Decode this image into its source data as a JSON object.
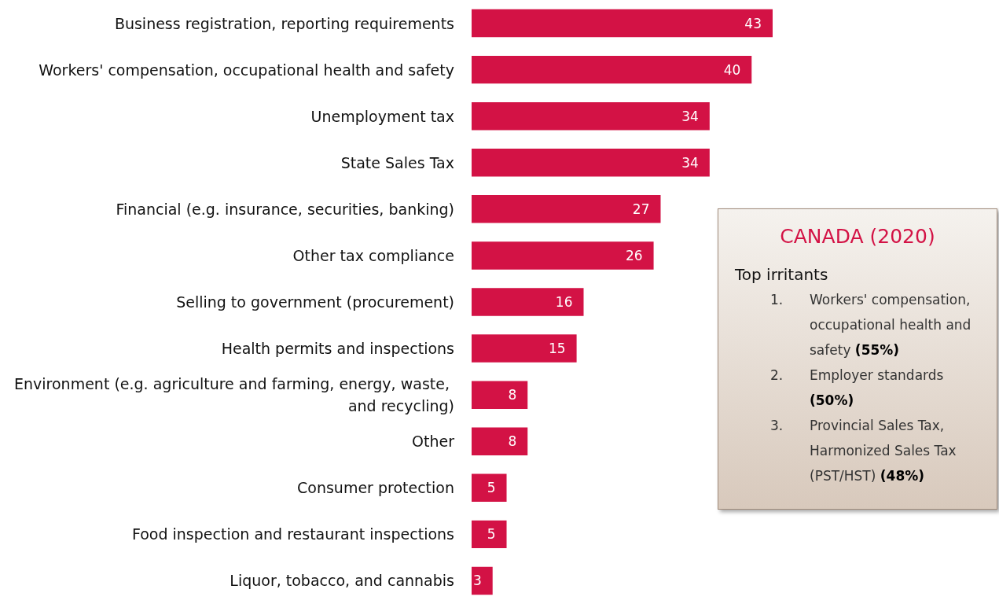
{
  "chart_data": [
    {
      "type": "bar",
      "orientation": "horizontal",
      "categories": [
        "Business registration, reporting requirements",
        "Workers' compensation, occupational health and safety",
        "Unemployment tax",
        "State Sales Tax",
        "Financial (e.g. insurance, securities, banking)",
        "Other tax compliance",
        "Selling to government (procurement)",
        "Health permits and inspections",
        "Environment (e.g. agriculture and farming, energy, waste, and recycling)",
        "Other",
        "Consumer protection",
        "Food inspection and restaurant inspections",
        "Liquor, tobacco, and cannabis"
      ],
      "values": [
        43,
        40,
        34,
        34,
        27,
        26,
        16,
        15,
        8,
        8,
        5,
        5,
        3
      ],
      "color": "#d31245",
      "data_labels": true
    },
    {
      "type": "other",
      "title": "CANADA (2020)",
      "subtitle": "Top irritants",
      "annotations": [
        "1. Workers' compensation, occupational health and safety (55%)",
        "2. Employer standards (50%)",
        "3. Provincial Sales Tax, Harmonized Sales Tax (PST/HST) (48%)"
      ]
    }
  ]
}
